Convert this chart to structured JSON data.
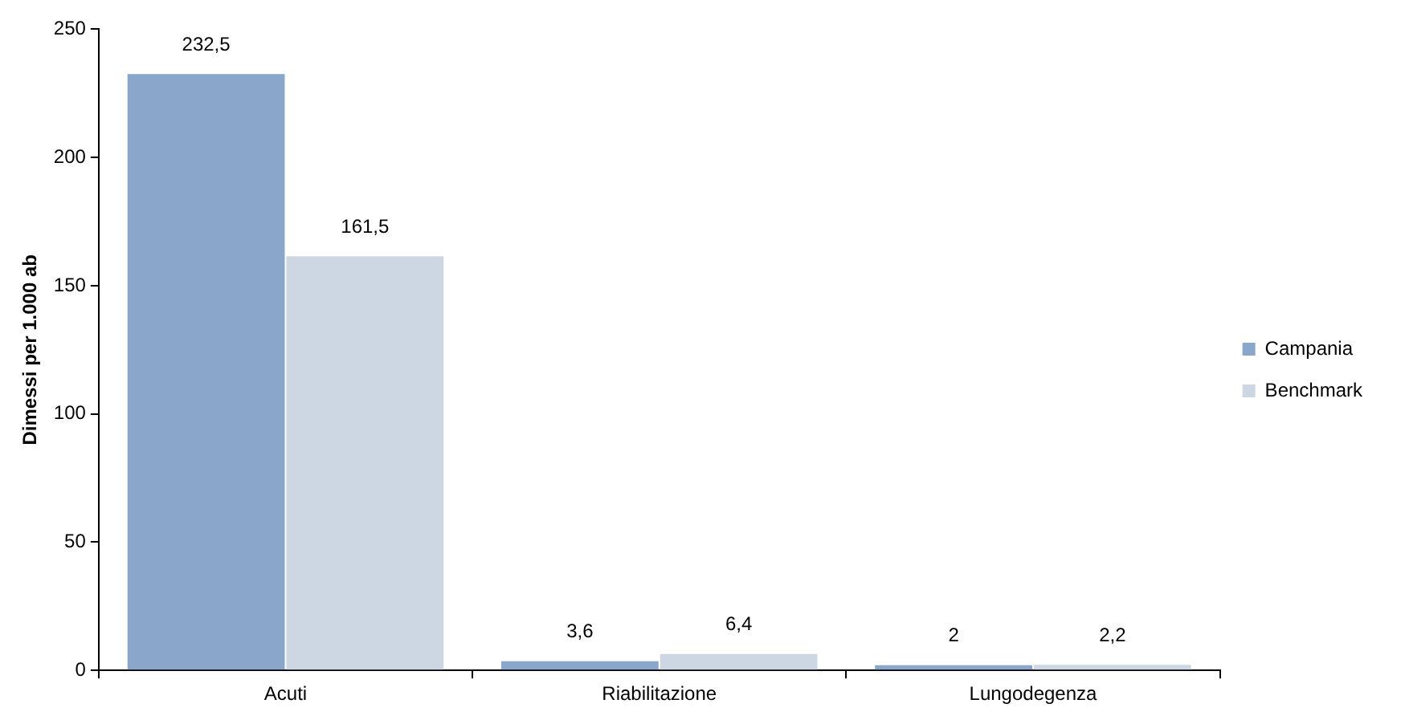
{
  "chart_data": {
    "type": "bar",
    "ylabel": "Dimessi per 1.000 ab",
    "categories": [
      "Acuti",
      "Riabilitazione",
      "Lungodegenza"
    ],
    "series": [
      {
        "name": "Campania",
        "color": "#8aa6cb",
        "values": [
          232.5,
          3.6,
          2
        ],
        "value_labels": [
          "232,5",
          "3,6",
          "2"
        ]
      },
      {
        "name": "Benchmark",
        "color": "#cdd7e4",
        "values": [
          161.5,
          6.4,
          2.2
        ],
        "value_labels": [
          "161,5",
          "6,4",
          "2,2"
        ]
      }
    ],
    "ylim": [
      0,
      250
    ],
    "yticks": [
      0,
      50,
      100,
      150,
      200,
      250
    ],
    "grid": false,
    "legend": "right"
  }
}
